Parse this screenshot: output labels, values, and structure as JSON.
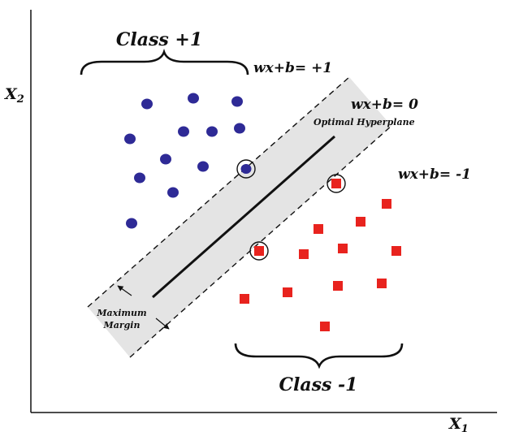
{
  "labels": {
    "class_pos": "Class +1",
    "class_neg": "Class -1",
    "eq_pos": "wx+b= +1",
    "eq_zero": "wx+b= 0",
    "optimal": "Optimal Hyperplane",
    "eq_neg": "wx+b= -1",
    "margin_line1": "Maximum",
    "margin_line2": "Margin",
    "x1": "X",
    "x1_sub": "1",
    "x2": "X",
    "x2_sub": "2"
  },
  "colors": {
    "class_pos": "#2e2a96",
    "class_neg": "#e8231e",
    "band": "#e4e4e4",
    "line": "#111111"
  }
}
